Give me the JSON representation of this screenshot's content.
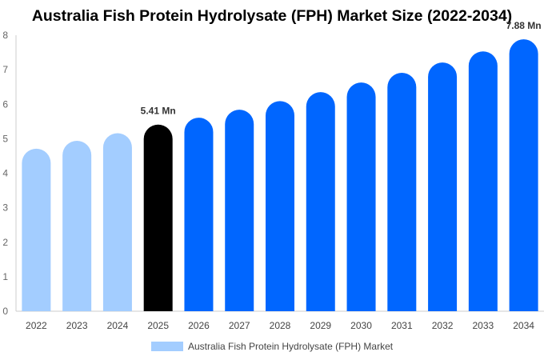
{
  "title": "Australia Fish Protein Hydrolysate (FPH) Market Size (2022-2034)",
  "legend_label": "Australia Fish Protein Hydrolysate (FPH) Market",
  "colors": {
    "historical": "#a3cdff",
    "current": "#000000",
    "forecast": "#0066ff",
    "axis": "#cccccc"
  },
  "chart_data": {
    "type": "bar",
    "title": "Australia Fish Protein Hydrolysate (FPH) Market Size (2022-2034)",
    "xlabel": "",
    "ylabel": "",
    "ylim": [
      0,
      8
    ],
    "yticks": [
      0,
      1,
      2,
      3,
      4,
      5,
      6,
      7,
      8
    ],
    "grid": false,
    "legend_position": "bottom",
    "categories": [
      "2022",
      "2023",
      "2024",
      "2025",
      "2026",
      "2027",
      "2028",
      "2029",
      "2030",
      "2031",
      "2032",
      "2033",
      "2034"
    ],
    "values": [
      4.71,
      4.94,
      5.16,
      5.41,
      5.61,
      5.84,
      6.09,
      6.35,
      6.63,
      6.91,
      7.21,
      7.53,
      7.88
    ],
    "bar_groups": [
      "historical",
      "historical",
      "historical",
      "current",
      "forecast",
      "forecast",
      "forecast",
      "forecast",
      "forecast",
      "forecast",
      "forecast",
      "forecast",
      "forecast"
    ],
    "data_labels": [
      {
        "category": "2025",
        "text": "5.41 Mn"
      },
      {
        "category": "2034",
        "text": "7.88 Mn"
      }
    ],
    "series": [
      {
        "name": "Australia Fish Protein Hydrolysate (FPH) Market",
        "values": [
          4.71,
          4.94,
          5.16,
          5.41,
          5.61,
          5.84,
          6.09,
          6.35,
          6.63,
          6.91,
          7.21,
          7.53,
          7.88
        ]
      }
    ]
  }
}
